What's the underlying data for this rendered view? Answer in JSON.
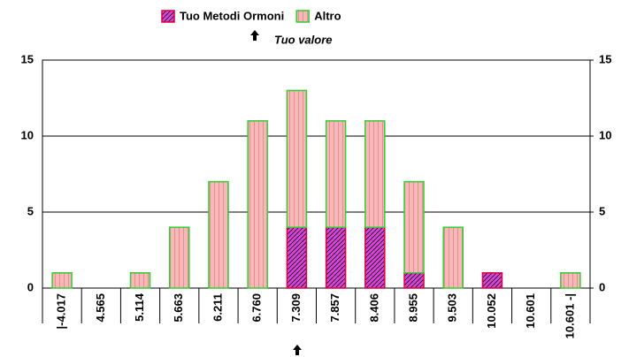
{
  "chart_data": {
    "type": "stacked_bar",
    "annotation": "Tuo valore",
    "categories": [
      "|-4.017",
      "4.565",
      "5.114",
      "5.663",
      "6.211",
      "6.760",
      "7.309",
      "7.857",
      "8.406",
      "8.955",
      "9.503",
      "10.052",
      "10.601",
      "10.601 -|"
    ],
    "series": [
      {
        "name": "Tuo Metodi Ormoni",
        "color": "#e040e0",
        "edgecolor": "#e00040",
        "hatch": "diagonal",
        "values": [
          0,
          0,
          0,
          0,
          0,
          0,
          4,
          4,
          4,
          1,
          0,
          1,
          0,
          0
        ]
      },
      {
        "name": "Altro",
        "color": "#f8b8b8",
        "edgecolor": "#33cc33",
        "hatch": "vertical",
        "values": [
          1,
          0,
          1,
          4,
          7,
          11,
          9,
          7,
          7,
          6,
          4,
          0,
          0,
          1
        ]
      }
    ],
    "ylim": [
      0,
      15
    ],
    "yticks": [
      0,
      5,
      10,
      15
    ],
    "y2lim": [
      0,
      15
    ],
    "y2ticks": [
      0,
      5,
      10,
      15
    ],
    "grid": true,
    "legend": "top"
  }
}
